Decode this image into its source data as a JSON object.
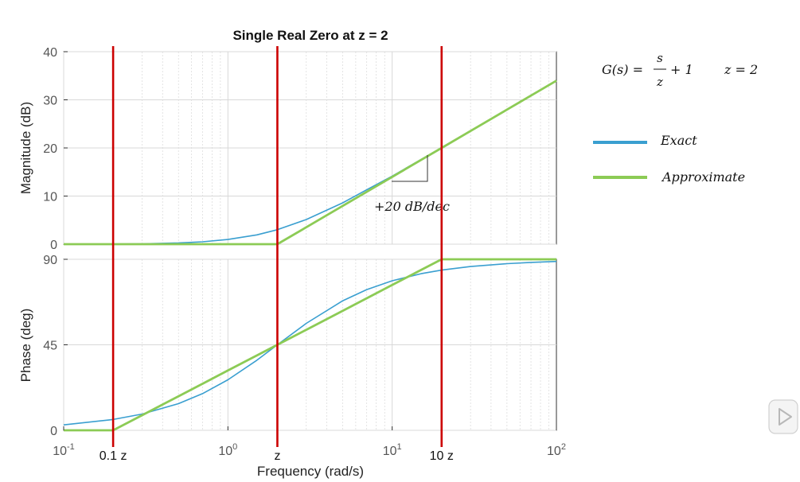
{
  "chart_data": [
    {
      "type": "line",
      "title": "Single Real Zero at z = 2",
      "xlabel": "",
      "ylabel": "Magnitude (dB)",
      "xscale": "log",
      "xlim": [
        0.1,
        100
      ],
      "ylim": [
        0,
        40
      ],
      "yticks": [
        0,
        10,
        20,
        30,
        40
      ],
      "grid": true,
      "x": [
        0.1,
        0.2,
        0.3,
        0.5,
        0.7,
        1,
        1.5,
        2,
        3,
        5,
        7,
        10,
        15,
        20,
        30,
        50,
        70,
        100
      ],
      "series": [
        {
          "name": "Exact",
          "values": [
            0.01,
            0.04,
            0.09,
            0.26,
            0.5,
            0.97,
            1.94,
            3.01,
            5.12,
            8.6,
            11.3,
            14.15,
            17.6,
            20.04,
            23.54,
            27.97,
            30.88,
            33.98
          ]
        },
        {
          "name": "Approximate",
          "values": [
            0,
            0,
            0,
            0,
            0,
            0,
            0,
            0,
            3.52,
            7.96,
            10.88,
            13.98,
            17.5,
            20,
            23.52,
            27.96,
            30.88,
            33.98
          ]
        }
      ],
      "annotations": [
        "+20 dB/dec"
      ]
    },
    {
      "type": "line",
      "title": "",
      "xlabel": "Frequency (rad/s)",
      "ylabel": "Phase (deg)",
      "xscale": "log",
      "xlim": [
        0.1,
        100
      ],
      "ylim": [
        0,
        90
      ],
      "yticks": [
        0,
        45,
        90
      ],
      "grid": true,
      "x": [
        0.1,
        0.2,
        0.3,
        0.5,
        0.7,
        1,
        1.5,
        2,
        3,
        5,
        7,
        10,
        15,
        20,
        30,
        50,
        70,
        100
      ],
      "series": [
        {
          "name": "Exact",
          "values": [
            2.86,
            5.71,
            8.53,
            14.04,
            19.29,
            26.57,
            36.87,
            45,
            56.31,
            68.2,
            74.05,
            78.69,
            82.41,
            84.29,
            86.19,
            87.71,
            88.36,
            88.85
          ]
        },
        {
          "name": "Approximate",
          "values": [
            0,
            0,
            7.93,
            17.92,
            24.5,
            31.47,
            39.4,
            45,
            52.93,
            62.91,
            69.49,
            76.47,
            84.39,
            90,
            90,
            90,
            90,
            90
          ]
        }
      ]
    }
  ],
  "x_axis": {
    "ticks": [
      {
        "base": "10",
        "exp": "-1",
        "value": 0.1
      },
      {
        "base": "10",
        "exp": "0",
        "value": 1
      },
      {
        "base": "10",
        "exp": "1",
        "value": 10
      },
      {
        "base": "10",
        "exp": "2",
        "value": 100
      }
    ],
    "markers": [
      {
        "label": "0.1 z",
        "value": 0.2
      },
      {
        "label": "z",
        "value": 2
      },
      {
        "label": "10 z",
        "value": 20
      }
    ]
  },
  "colors": {
    "exact": "#3a9fd0",
    "approx": "#8ccb55",
    "marker": "#cc0000",
    "grid": "#d8d8d8",
    "axis": "#333333"
  },
  "legend": {
    "formula_lhs": "G(s) = ",
    "formula_num": "s",
    "formula_den": "z",
    "formula_tail": "+ 1",
    "formula_z": "z = 2",
    "entries": [
      {
        "name": "Exact",
        "color_key": "exact"
      },
      {
        "name": "Approximate",
        "color_key": "approx"
      }
    ]
  },
  "overlay": {
    "icon": "play-icon"
  }
}
